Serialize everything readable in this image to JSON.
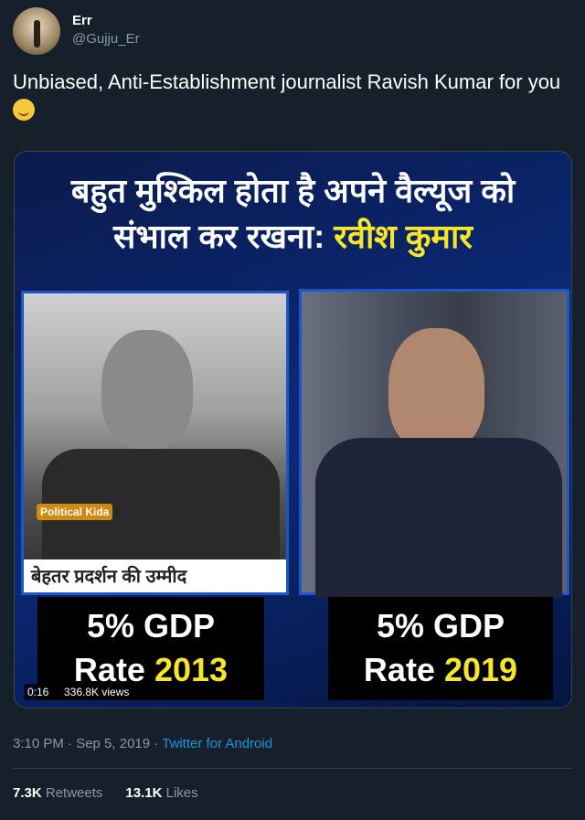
{
  "tweet": {
    "name": "Err",
    "handle": "@Gujju_Er",
    "text": "Unbiased, Anti-Establishment journalist Ravish Kumar for you",
    "emoji": "smiling-face-with-smiling-eyes"
  },
  "media": {
    "headline_line1": "बहुत मुश्किल होता है अपने वैल्यूज को",
    "headline_line2": "संभाल कर रखना:",
    "headline_name": "रवीश कुमार",
    "left_caption": "बेहतर प्रदर्शन की उम्मीद",
    "logo": "Political Kida",
    "left_box_line1": "5% GDP",
    "left_box_rate": "Rate",
    "left_box_year": "2013",
    "right_box_line1": "5% GDP",
    "right_box_rate": "Rate",
    "right_box_year": "2019",
    "duration": "0:16",
    "views": "336.8K views"
  },
  "meta": {
    "time": "3:10 PM · Sep 5, 2019 ·",
    "source": "Twitter for Android"
  },
  "stats": {
    "retweets_count": "7.3K",
    "retweets_label": "Retweets",
    "likes_count": "13.1K",
    "likes_label": "Likes"
  }
}
